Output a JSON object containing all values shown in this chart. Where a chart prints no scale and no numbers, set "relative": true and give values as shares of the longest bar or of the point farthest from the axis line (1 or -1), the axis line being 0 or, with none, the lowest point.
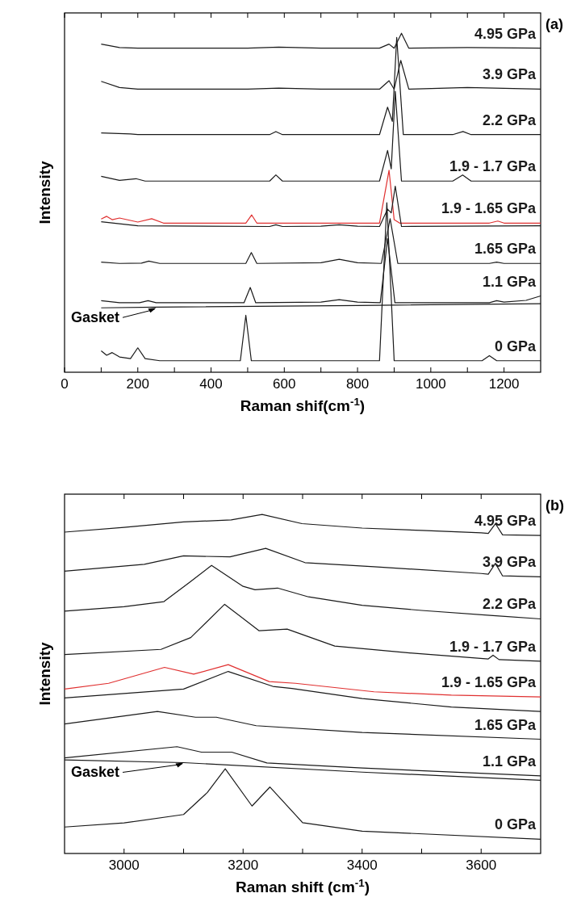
{
  "chart_data": [
    {
      "type": "line",
      "relative": true,
      "xlabel": "Raman shif(cm$^{-1}$)",
      "ylabel": "Intensity",
      "xlim": [
        0,
        1300
      ],
      "xticks": [
        0,
        {
          "value": 100,
          "label": null
        },
        200,
        {
          "value": 300,
          "label": null
        },
        400,
        {
          "value": 500,
          "label": null
        },
        600,
        {
          "value": 700,
          "label": null
        },
        800,
        {
          "value": 900,
          "label": null
        },
        1000,
        {
          "value": 1100,
          "label": null
        },
        1200
      ],
      "grid": false,
      "marker": "none",
      "line_style": "solid",
      "annotations": [
        "(a)",
        {
          "text": "Gasket",
          "x": 250,
          "y": 0.19
        }
      ],
      "series": [
        {
          "name": "4.95 GPa",
          "color": "#1a1a1a",
          "x": [
            100,
            150,
            200,
            500,
            585,
            700,
            860,
            886,
            900,
            920,
            940,
            1100,
            1300
          ],
          "values": [
            0.968,
            0.958,
            0.956,
            0.956,
            0.959,
            0.956,
            0.956,
            0.968,
            0.956,
            1.0,
            0.956,
            0.958,
            0.956
          ]
        },
        {
          "name": "3.9 GPa",
          "color": "#1a1a1a",
          "x": [
            100,
            150,
            200,
            500,
            585,
            700,
            860,
            886,
            900,
            918,
            940,
            1100,
            1300
          ],
          "values": [
            0.858,
            0.84,
            0.835,
            0.835,
            0.838,
            0.835,
            0.835,
            0.86,
            0.835,
            0.92,
            0.835,
            0.84,
            0.835
          ]
        },
        {
          "name": "2.2 GPa",
          "color": "#1a1a1a",
          "x": [
            100,
            180,
            200,
            400,
            560,
            577,
            595,
            860,
            882,
            895,
            907,
            925,
            1060,
            1088,
            1110,
            1300
          ],
          "values": [
            0.706,
            0.703,
            0.701,
            0.701,
            0.701,
            0.71,
            0.701,
            0.701,
            0.782,
            0.74,
            0.988,
            0.701,
            0.701,
            0.71,
            0.701,
            0.701
          ]
        },
        {
          "name": "1.9 - 1.7 GPa",
          "color": "#1a1a1a",
          "x": [
            100,
            150,
            195,
            220,
            560,
            577,
            595,
            860,
            882,
            892,
            903,
            920,
            1060,
            1087,
            1110,
            1300
          ],
          "values": [
            0.578,
            0.566,
            0.571,
            0.564,
            0.564,
            0.582,
            0.564,
            0.564,
            0.654,
            0.6,
            0.829,
            0.564,
            0.564,
            0.582,
            0.564,
            0.564
          ]
        },
        {
          "name": "1.9 - 1.65 GPa",
          "color": "#e03030",
          "x": [
            100,
            115,
            130,
            150,
            200,
            238,
            270,
            495,
            511,
            525,
            860,
            886,
            900,
            915,
            1160,
            1183,
            1200,
            1300
          ],
          "values": [
            0.452,
            0.46,
            0.45,
            0.455,
            0.443,
            0.453,
            0.44,
            0.44,
            0.464,
            0.44,
            0.44,
            0.596,
            0.45,
            0.44,
            0.44,
            0.446,
            0.44,
            0.44
          ]
        },
        {
          "color": "#1a1a1a",
          "x": [
            100,
            200,
            560,
            577,
            595,
            700,
            750,
            800,
            860,
            882,
            892,
            903,
            920,
            1300
          ],
          "values": [
            0.444,
            0.432,
            0.43,
            0.435,
            0.43,
            0.431,
            0.435,
            0.431,
            0.43,
            0.481,
            0.47,
            0.549,
            0.43,
            0.432
          ]
        },
        {
          "name": "1.65 GPa",
          "color": "#1a1a1a",
          "x": [
            100,
            150,
            210,
            230,
            260,
            495,
            510,
            525,
            700,
            750,
            800,
            865,
            889,
            910,
            1160,
            1180,
            1200,
            1300
          ],
          "values": [
            0.325,
            0.321,
            0.322,
            0.328,
            0.321,
            0.321,
            0.353,
            0.321,
            0.323,
            0.333,
            0.323,
            0.321,
            0.453,
            0.321,
            0.321,
            0.325,
            0.321,
            0.321
          ]
        },
        {
          "name": "1.1 GPa",
          "color": "#1a1a1a",
          "x": [
            100,
            150,
            205,
            228,
            250,
            490,
            507,
            522,
            700,
            750,
            800,
            862,
            882,
            902,
            1160,
            1180,
            1200,
            1260,
            1300
          ],
          "values": [
            0.211,
            0.205,
            0.205,
            0.211,
            0.205,
            0.205,
            0.25,
            0.205,
            0.207,
            0.214,
            0.207,
            0.205,
            0.394,
            0.205,
            0.205,
            0.211,
            0.207,
            0.212,
            0.225
          ]
        },
        {
          "color": "#1a1a1a",
          "x": [
            100,
            250,
            800,
            1300
          ],
          "values": [
            0.19,
            0.192,
            0.197,
            0.202
          ]
        },
        {
          "name": "0 GPa",
          "color": "#1a1a1a",
          "x": [
            100,
            115,
            130,
            150,
            180,
            200,
            220,
            260,
            480,
            495,
            510,
            860,
            880,
            900,
            1140,
            1160,
            1180,
            1300
          ],
          "values": [
            0.063,
            0.05,
            0.058,
            0.045,
            0.04,
            0.072,
            0.04,
            0.034,
            0.034,
            0.168,
            0.034,
            0.034,
            0.5,
            0.034,
            0.034,
            0.049,
            0.034,
            0.034
          ]
        }
      ]
    },
    {
      "type": "line",
      "relative": true,
      "xlabel": "Raman shift (cm$^{-1}$)",
      "ylabel": "Intensity",
      "xlim": [
        2900,
        3700
      ],
      "xticks": [
        3000,
        {
          "value": 3100,
          "label": null
        },
        3200,
        {
          "value": 3300,
          "label": null
        },
        3400,
        {
          "value": 3500,
          "label": null
        },
        3600
      ],
      "grid": false,
      "marker": "none",
      "line_style": "solid",
      "annotations": [
        "(b)",
        {
          "text": "Gasket",
          "x": 3100,
          "y": 0.268
        }
      ],
      "series": [
        {
          "name": "4.95 GPa",
          "color": "#1a1a1a",
          "x": [
            2900,
            3000,
            3100,
            3180,
            3232,
            3299,
            3400,
            3500,
            3600,
            3612,
            3624,
            3636,
            3700
          ],
          "values": [
            0.948,
            0.962,
            0.978,
            0.984,
            1.0,
            0.973,
            0.96,
            0.953,
            0.946,
            0.944,
            0.973,
            0.94,
            0.938
          ]
        },
        {
          "name": "3.9 GPa",
          "color": "#1a1a1a",
          "x": [
            2900,
            3034,
            3100,
            3178,
            3238,
            3304,
            3420,
            3600,
            3612,
            3624,
            3636,
            3700
          ],
          "values": [
            0.833,
            0.853,
            0.878,
            0.875,
            0.9,
            0.858,
            0.846,
            0.826,
            0.824,
            0.856,
            0.819,
            0.816
          ]
        },
        {
          "name": "2.2 GPa",
          "color": "#1a1a1a",
          "x": [
            2900,
            3000,
            3067,
            3110,
            3147,
            3200,
            3220,
            3258,
            3310,
            3400,
            3500,
            3620,
            3700
          ],
          "values": [
            0.715,
            0.728,
            0.743,
            0.8,
            0.85,
            0.788,
            0.778,
            0.783,
            0.757,
            0.732,
            0.717,
            0.702,
            0.692
          ]
        },
        {
          "name": "1.9 - 1.7 GPa",
          "color": "#1a1a1a",
          "x": [
            2900,
            3062,
            3112,
            3169,
            3227,
            3274,
            3354,
            3476,
            3612,
            3620,
            3630,
            3700
          ],
          "values": [
            0.587,
            0.602,
            0.637,
            0.735,
            0.657,
            0.662,
            0.612,
            0.592,
            0.574,
            0.585,
            0.572,
            0.567
          ]
        },
        {
          "name": "1.9 - 1.65 GPa",
          "color": "#e03030",
          "x": [
            2900,
            2974,
            3068,
            3117,
            3175,
            3244,
            3288,
            3420,
            3550,
            3700
          ],
          "values": [
            0.485,
            0.502,
            0.549,
            0.529,
            0.557,
            0.507,
            0.502,
            0.477,
            0.467,
            0.462
          ]
        },
        {
          "color": "#1a1a1a",
          "x": [
            2900,
            3100,
            3175,
            3250,
            3282,
            3400,
            3550,
            3700
          ],
          "values": [
            0.459,
            0.485,
            0.537,
            0.493,
            0.487,
            0.457,
            0.432,
            0.419
          ]
        },
        {
          "name": "1.65 GPa",
          "color": "#1a1a1a",
          "x": [
            2900,
            3056,
            3120,
            3155,
            3222,
            3400,
            3700
          ],
          "values": [
            0.382,
            0.419,
            0.402,
            0.402,
            0.377,
            0.357,
            0.337
          ]
        },
        {
          "name": "1.1 GPa",
          "color": "#1a1a1a",
          "x": [
            2900,
            3089,
            3130,
            3181,
            3240,
            3400,
            3700
          ],
          "values": [
            0.282,
            0.315,
            0.299,
            0.299,
            0.267,
            0.252,
            0.229
          ]
        },
        {
          "color": "#1a1a1a",
          "x": [
            2900,
            3100,
            3400,
            3700
          ],
          "values": [
            0.276,
            0.268,
            0.24,
            0.216
          ]
        },
        {
          "name": "0 GPa",
          "color": "#1a1a1a",
          "x": [
            2900,
            3000,
            3100,
            3140,
            3170,
            3215,
            3245,
            3300,
            3400,
            3700
          ],
          "values": [
            0.078,
            0.09,
            0.115,
            0.18,
            0.25,
            0.14,
            0.196,
            0.091,
            0.066,
            0.042
          ]
        }
      ]
    }
  ]
}
